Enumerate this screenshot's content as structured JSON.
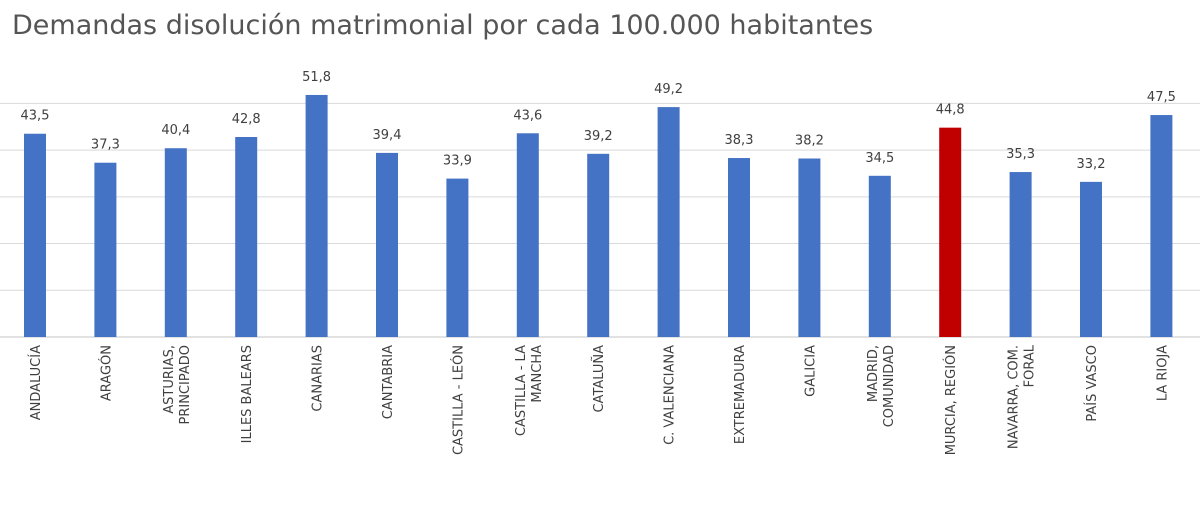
{
  "chart_data": {
    "type": "bar",
    "title": "Demandas disolución matrimonial por cada 100.000 habitantes",
    "xlabel": "",
    "ylabel": "",
    "ylim": [
      0,
      55
    ],
    "grid": true,
    "legend": "none",
    "categories": [
      [
        "ANDALUCÍA"
      ],
      [
        "ARAGÓN"
      ],
      [
        "ASTURIAS,",
        "PRINCIPADO"
      ],
      [
        "ILLES BALEARS"
      ],
      [
        "CANARIAS"
      ],
      [
        "CANTABRIA"
      ],
      [
        "CASTILLA - LEÓN"
      ],
      [
        "CASTILLA - LA",
        "MANCHA"
      ],
      [
        "CATALUÑA"
      ],
      [
        "C. VALENCIANA"
      ],
      [
        "EXTREMADURA"
      ],
      [
        "GALICIA"
      ],
      [
        "MADRID,",
        "COMUNIDAD"
      ],
      [
        "MURCIA, REGIÓN"
      ],
      [
        "NAVARRA, COM.",
        "FORAL"
      ],
      [
        "PAÍS VASCO"
      ],
      [
        "LA RIOJA"
      ]
    ],
    "values": [
      43.5,
      37.3,
      40.4,
      42.8,
      51.8,
      39.4,
      33.9,
      43.6,
      39.2,
      49.2,
      38.3,
      38.2,
      34.5,
      44.8,
      35.3,
      33.2,
      47.5
    ],
    "value_labels": [
      "43,5",
      "37,3",
      "40,4",
      "42,8",
      "51,8",
      "39,4",
      "33,9",
      "43,6",
      "39,2",
      "49,2",
      "38,3",
      "38,2",
      "34,5",
      "44,8",
      "35,3",
      "33,2",
      "47,5"
    ],
    "colors": {
      "bar": "#4472C4",
      "highlight": "#C00000",
      "grid": "#D9D9D9",
      "text": "#404040"
    },
    "highlight_index": 13
  }
}
